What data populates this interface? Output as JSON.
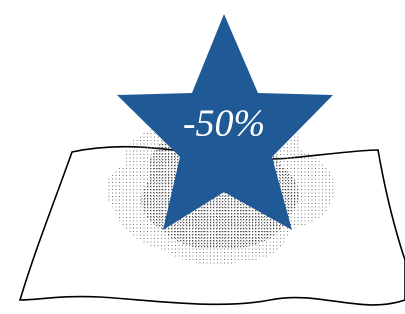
{
  "badge": {
    "label": "-50%"
  }
}
